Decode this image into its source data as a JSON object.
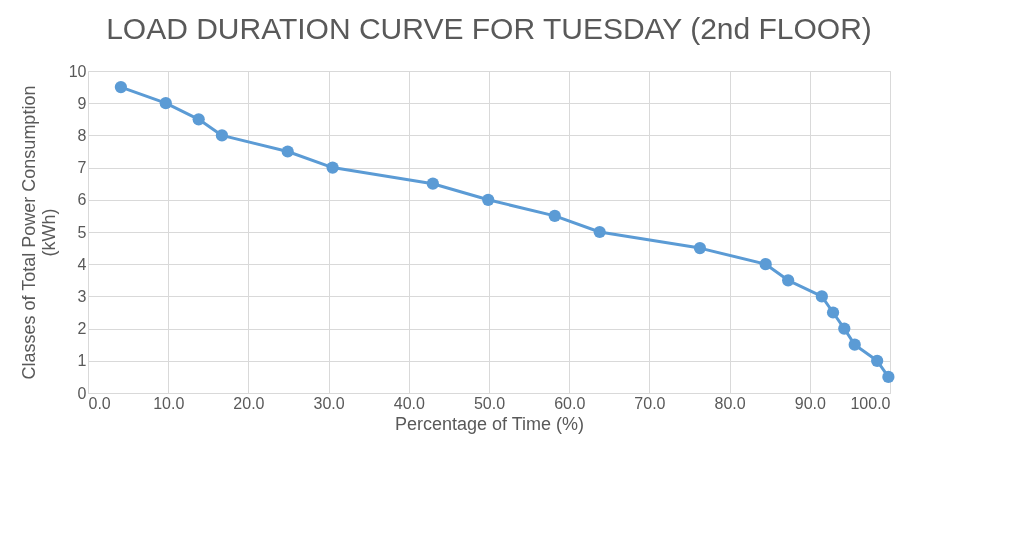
{
  "chart_data": {
    "type": "line",
    "title": "LOAD DURATION CURVE FOR TUESDAY (2nd FLOOR)",
    "xlabel": "Percentage of Time (%)",
    "ylabel": "Classes of Total Power Consumption (kWh)",
    "x": [
      4.1,
      9.7,
      13.8,
      16.7,
      24.9,
      30.5,
      43.0,
      49.9,
      58.2,
      63.8,
      76.3,
      84.5,
      87.3,
      91.5,
      92.9,
      94.3,
      95.6,
      98.4,
      99.8
    ],
    "series": [
      {
        "color": "#5b9bd5",
        "values": [
          9.5,
          9,
          8.5,
          8,
          7.5,
          7,
          6.5,
          6,
          5.5,
          5,
          4.5,
          4,
          3.5,
          3,
          2.5,
          2,
          1.5,
          1,
          0.5
        ]
      }
    ],
    "xlim": [
      0,
      100
    ],
    "xticks": [
      {
        "value": 0,
        "label": "0.0"
      },
      {
        "value": 10,
        "label": "10.0"
      },
      {
        "value": 20,
        "label": "20.0"
      },
      {
        "value": 30,
        "label": "30.0"
      },
      {
        "value": 40,
        "label": "40.0"
      },
      {
        "value": 50,
        "label": "50.0"
      },
      {
        "value": 60,
        "label": "60.0"
      },
      {
        "value": 70,
        "label": "70.0"
      },
      {
        "value": 80,
        "label": "80.0"
      },
      {
        "value": 90,
        "label": "90.0"
      },
      {
        "value": 100,
        "label": "100.0"
      }
    ],
    "ylim": [
      0,
      10
    ],
    "yticks": [
      0,
      1,
      2,
      3,
      4,
      5,
      6,
      7,
      8,
      9,
      10
    ],
    "grid": true,
    "marker": "circle",
    "line_style": "solid"
  }
}
